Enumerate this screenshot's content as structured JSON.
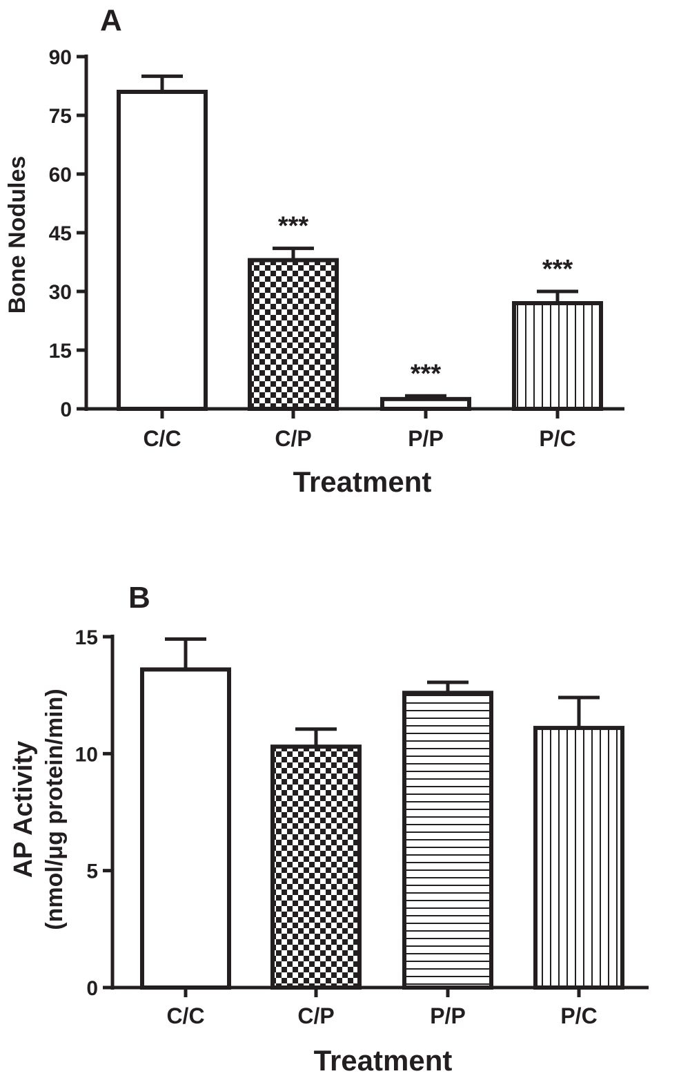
{
  "colors": {
    "ink": "#231f20",
    "background": "#ffffff"
  },
  "chart_data": [
    {
      "panel": "A",
      "type": "bar",
      "categories": [
        "C/C",
        "C/P",
        "P/P",
        "P/C"
      ],
      "values": [
        81,
        38,
        2.5,
        27
      ],
      "errors": [
        4,
        3,
        0.8,
        3
      ],
      "significance": [
        "",
        "***",
        "***",
        "***"
      ],
      "patterns": [
        "solid",
        "checker",
        "solid",
        "vertical"
      ],
      "xlabel": "Treatment",
      "ylabel": "Bone Nodules",
      "ylim": [
        0,
        90
      ],
      "yticks": [
        0,
        15,
        30,
        45,
        60,
        75,
        90
      ],
      "grid": false
    },
    {
      "panel": "B",
      "type": "bar",
      "categories": [
        "C/C",
        "C/P",
        "P/P",
        "P/C"
      ],
      "values": [
        13.6,
        10.3,
        12.6,
        11.1
      ],
      "errors": [
        1.3,
        0.75,
        0.45,
        1.3
      ],
      "significance": [
        "",
        "",
        "",
        ""
      ],
      "patterns": [
        "solid",
        "checker",
        "horizontal",
        "vertical"
      ],
      "xlabel": "Treatment",
      "ylabel": "AP Activity",
      "ylabel2": "(nmol/μg protein/min)",
      "ylim": [
        0,
        15
      ],
      "yticks": [
        0,
        5,
        10,
        15
      ],
      "grid": false
    }
  ]
}
